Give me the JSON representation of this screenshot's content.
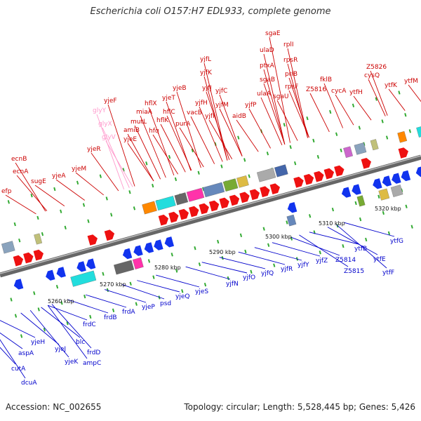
{
  "title": "Escherichia coli O157:H7 EDL933, complete genome",
  "accession": "Accession: NC_002655",
  "info": "Topology: circular; Length: 5,528,445 bp; Genes: 5,426",
  "colors": {
    "upper_label": "#cc0000",
    "lower_label": "#0000cc",
    "faded_label": "#ff99cc",
    "forward_arrow": "#ee1111",
    "reverse_arrow": "#1133ee",
    "tick": "#33aa33",
    "backbone": "#888888"
  },
  "scale_labels": [
    "5260 kbp",
    "5270 kbp",
    "5280 kbp",
    "5290 kbp",
    "5300 kbp",
    "5310 kbp",
    "5320 kbp"
  ],
  "upper_genes": [
    "efp",
    "ecnB",
    "ecnA",
    "sugE",
    "yjeA",
    "yjeM",
    "yjeR",
    "yjeF",
    "glyY",
    "glyX",
    "glyV",
    "amiB",
    "yjeE",
    "mutL",
    "miaA",
    "hflX",
    "hfq",
    "hflK",
    "hflC",
    "yjeT",
    "yjeB",
    "purA",
    "vacB",
    "yjfH",
    "yjfL",
    "yjfK",
    "yjfJ",
    "yjfI",
    "yjfC",
    "yjfM",
    "aidB",
    "yjfP",
    "sgaE",
    "ulaD",
    "ptxA",
    "sgaB",
    "ulaA",
    "sgaU",
    "rplI",
    "rpsR",
    "priB",
    "rpsF",
    "Z5816",
    "fklB",
    "cycA",
    "ytfH",
    "Z5826",
    "cysQ",
    "ytfK",
    "ytfM"
  ],
  "lower_genes": [
    "cutA",
    "dcuA",
    "aspA",
    "yjeH",
    "yjeJ",
    "yjeK",
    "blc",
    "frdD",
    "ampC",
    "frdC",
    "frdB",
    "frdA",
    "yjeP",
    "psd",
    "yjeQ",
    "yjeS",
    "yjfN",
    "yjfO",
    "yjfQ",
    "yjfR",
    "yjfY",
    "yjfZ",
    "Z5814",
    "Z5815",
    "ytfB",
    "ytfE",
    "ytfF",
    "ytfG"
  ]
}
